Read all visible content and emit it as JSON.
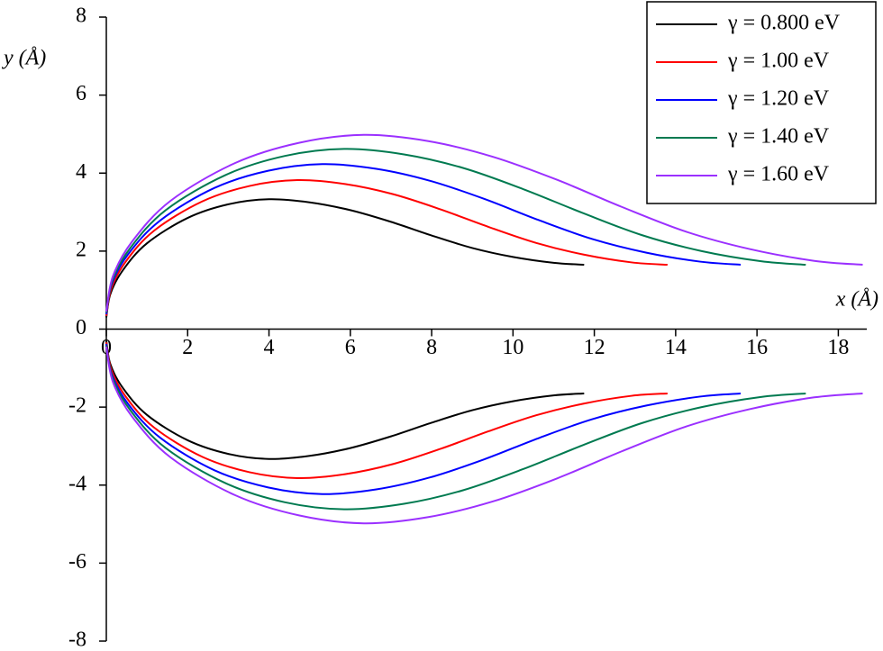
{
  "chart_data": {
    "type": "line",
    "xlabel": "x (Å)",
    "ylabel": "y (Å)",
    "xlim": [
      0,
      18.7
    ],
    "ylim": [
      -8,
      8
    ],
    "xticks": [
      0,
      2,
      4,
      6,
      8,
      10,
      12,
      14,
      16,
      18
    ],
    "yticks": [
      -8,
      -6,
      -4,
      -2,
      0,
      2,
      4,
      6,
      8
    ],
    "legend": "upper right",
    "series": [
      {
        "name": "γ = 0.800 eV",
        "color": "#000000",
        "x": [
          0,
          0.1,
          0.4,
          1,
          2,
          3,
          4,
          5,
          6,
          7,
          8,
          9,
          10,
          11,
          11.75
        ],
        "y_upper": [
          0.3,
          0.9,
          1.5,
          2.2,
          2.85,
          3.2,
          3.33,
          3.25,
          3.05,
          2.75,
          2.4,
          2.08,
          1.85,
          1.7,
          1.65
        ],
        "y_lower": [
          -0.3,
          -0.9,
          -1.5,
          -2.2,
          -2.85,
          -3.2,
          -3.33,
          -3.25,
          -3.05,
          -2.75,
          -2.4,
          -2.08,
          -1.85,
          -1.7,
          -1.65
        ]
      },
      {
        "name": "γ = 1.00 eV",
        "color": "#ff0000",
        "x": [
          0,
          0.12,
          0.47,
          1.17,
          2.35,
          3.52,
          4.7,
          5.87,
          7.05,
          8.22,
          9.4,
          10.57,
          11.74,
          12.92,
          13.8
        ],
        "y_upper": [
          0.34,
          1.03,
          1.72,
          2.52,
          3.27,
          3.67,
          3.82,
          3.72,
          3.46,
          3.07,
          2.62,
          2.21,
          1.91,
          1.71,
          1.65
        ],
        "y_lower": [
          -0.34,
          -1.03,
          -1.72,
          -2.52,
          -3.27,
          -3.67,
          -3.82,
          -3.72,
          -3.46,
          -3.07,
          -2.62,
          -2.21,
          -1.91,
          -1.71,
          -1.65
        ]
      },
      {
        "name": "γ = 1.20 eV",
        "color": "#0000ff",
        "x": [
          0,
          0.13,
          0.53,
          1.33,
          2.66,
          3.98,
          5.31,
          6.64,
          7.97,
          9.29,
          10.62,
          11.95,
          13.28,
          14.6,
          15.6
        ],
        "y_upper": [
          0.38,
          1.14,
          1.91,
          2.79,
          3.62,
          4.06,
          4.23,
          4.11,
          3.8,
          3.34,
          2.8,
          2.31,
          1.96,
          1.73,
          1.65
        ],
        "y_lower": [
          -0.38,
          -1.14,
          -1.91,
          -2.79,
          -3.62,
          -4.06,
          -4.23,
          -4.11,
          -3.8,
          -3.34,
          -2.8,
          -2.31,
          -1.96,
          -1.73,
          -1.65
        ]
      },
      {
        "name": "γ = 1.40 eV",
        "color": "#007a50",
        "x": [
          0,
          0.15,
          0.59,
          1.46,
          2.93,
          4.39,
          5.86,
          7.32,
          8.78,
          10.25,
          11.71,
          13.17,
          14.64,
          16.1,
          17.2
        ],
        "y_upper": [
          0.42,
          1.25,
          2.08,
          3.05,
          3.95,
          4.44,
          4.62,
          4.48,
          4.13,
          3.59,
          2.98,
          2.41,
          2.0,
          1.74,
          1.65
        ],
        "y_lower": [
          -0.42,
          -1.25,
          -2.08,
          -3.05,
          -3.95,
          -4.44,
          -4.62,
          -4.48,
          -4.13,
          -3.59,
          -2.98,
          -2.41,
          -2.0,
          -1.74,
          -1.65
        ]
      },
      {
        "name": "γ = 1.60 eV",
        "color": "#9b30ff",
        "x": [
          0,
          0.16,
          0.63,
          1.58,
          3.17,
          4.75,
          6.33,
          7.92,
          9.5,
          11.08,
          12.66,
          14.25,
          15.83,
          17.41,
          18.6
        ],
        "y_upper": [
          0.45,
          1.35,
          2.24,
          3.29,
          4.26,
          4.78,
          4.98,
          4.82,
          4.42,
          3.83,
          3.14,
          2.5,
          2.05,
          1.75,
          1.65
        ],
        "y_lower": [
          -0.45,
          -1.35,
          -2.24,
          -3.29,
          -4.26,
          -4.78,
          -4.98,
          -4.82,
          -4.42,
          -3.83,
          -3.14,
          -2.5,
          -2.05,
          -1.75,
          -1.65
        ]
      }
    ]
  }
}
